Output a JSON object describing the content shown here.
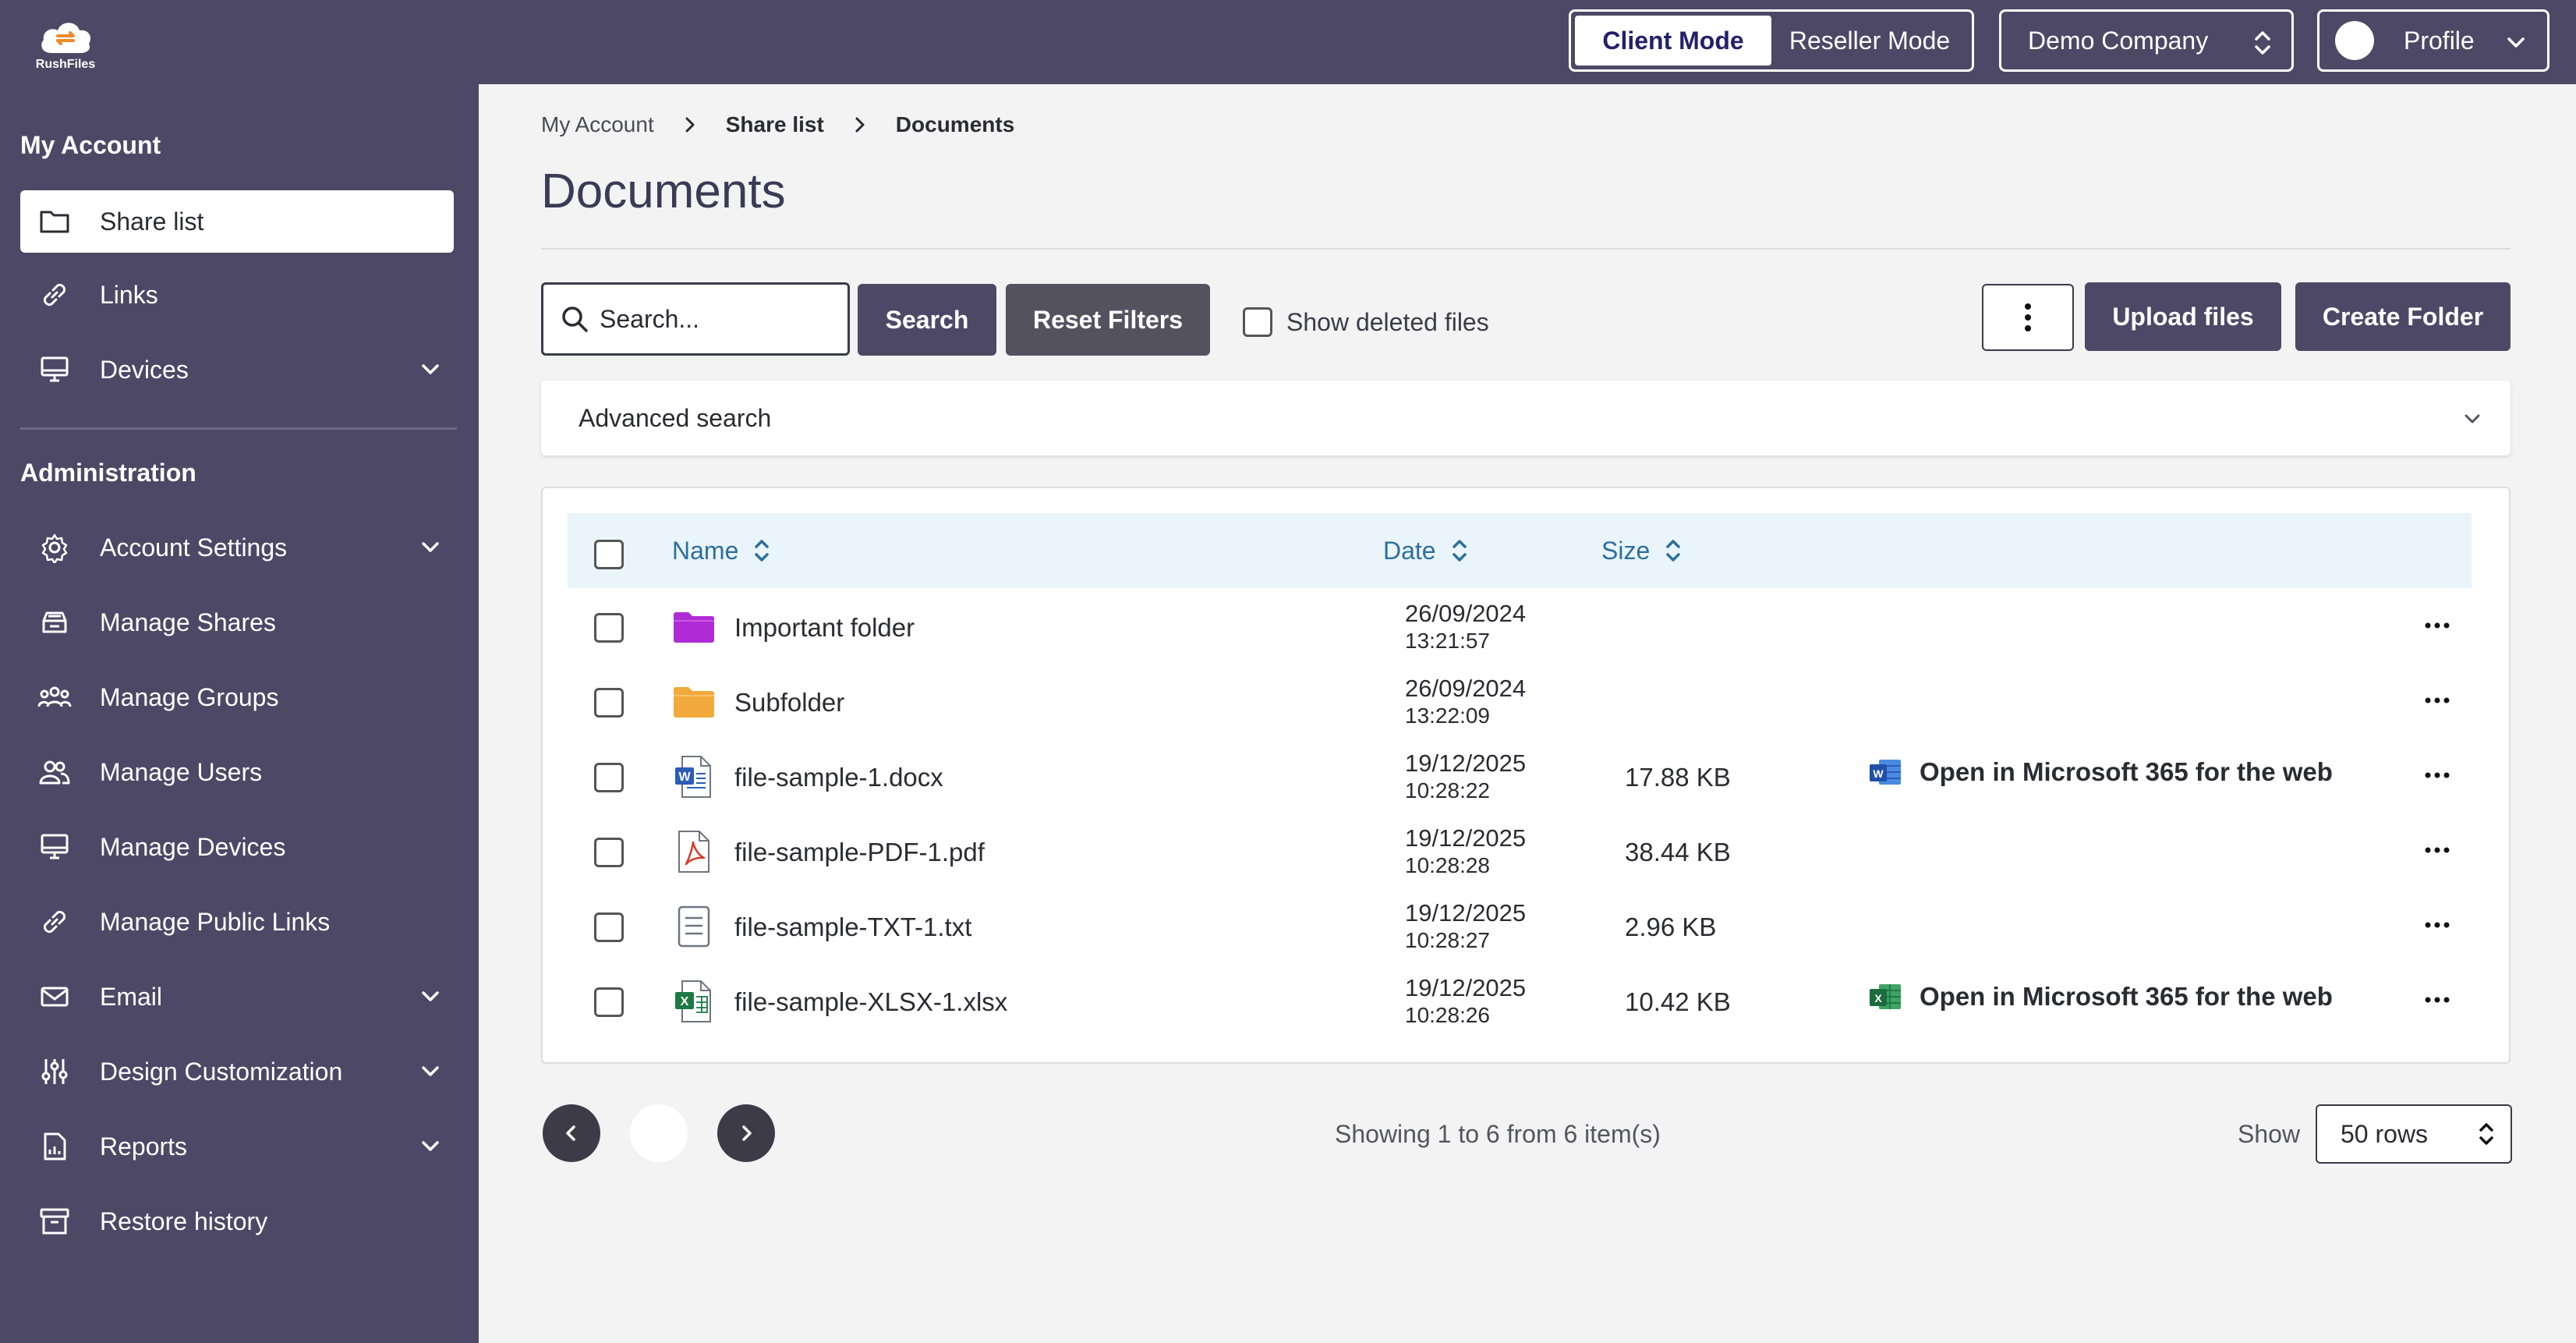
{
  "brand": {
    "name": "RushFiles"
  },
  "topbar": {
    "modes": [
      "Client Mode",
      "Reseller Mode"
    ],
    "active_mode": "Client Mode",
    "company": "Demo Company",
    "profile": "Profile"
  },
  "sidebar": {
    "my_account_heading": "My Account",
    "my_account_items": [
      {
        "label": "Share list",
        "icon": "folder-icon",
        "active": true
      },
      {
        "label": "Links",
        "icon": "link-icon"
      },
      {
        "label": "Devices",
        "icon": "monitor-icon",
        "expandable": true
      }
    ],
    "admin_heading": "Administration",
    "admin_items": [
      {
        "label": "Account Settings",
        "icon": "gear-icon",
        "expandable": true
      },
      {
        "label": "Manage Shares",
        "icon": "inbox-icon"
      },
      {
        "label": "Manage Groups",
        "icon": "group-icon"
      },
      {
        "label": "Manage Users",
        "icon": "users-icon"
      },
      {
        "label": "Manage Devices",
        "icon": "monitor-icon"
      },
      {
        "label": "Manage Public Links",
        "icon": "link-icon"
      },
      {
        "label": "Email",
        "icon": "mail-icon",
        "expandable": true
      },
      {
        "label": "Design Customization",
        "icon": "sliders-icon",
        "expandable": true
      },
      {
        "label": "Reports",
        "icon": "report-icon",
        "expandable": true
      },
      {
        "label": "Restore history",
        "icon": "archive-icon"
      }
    ]
  },
  "breadcrumb": [
    "My Account",
    "Share list",
    "Documents"
  ],
  "page": {
    "title": "Documents"
  },
  "toolbar": {
    "search_placeholder": "Search...",
    "search_label": "Search",
    "reset_label": "Reset Filters",
    "show_deleted_label": "Show deleted files",
    "upload_label": "Upload files",
    "create_folder_label": "Create Folder"
  },
  "advanced_search": {
    "label": "Advanced search"
  },
  "table": {
    "columns": {
      "name": "Name",
      "date": "Date",
      "size": "Size"
    },
    "rows": [
      {
        "name": "Important folder",
        "type": "folder",
        "color": "#b02ad6",
        "date": "26/09/2024",
        "time": "13:21:57",
        "size": "",
        "office": ""
      },
      {
        "name": "Subfolder",
        "type": "folder",
        "color": "#f0a93a",
        "date": "26/09/2024",
        "time": "13:22:09",
        "size": "",
        "office": ""
      },
      {
        "name": "file-sample-1.docx",
        "type": "word",
        "date": "19/12/2025",
        "time": "10:28:22",
        "size": "17.88 KB",
        "office": "Open in Microsoft 365 for the web"
      },
      {
        "name": "file-sample-PDF-1.pdf",
        "type": "pdf",
        "date": "19/12/2025",
        "time": "10:28:28",
        "size": "38.44 KB",
        "office": ""
      },
      {
        "name": "file-sample-TXT-1.txt",
        "type": "txt",
        "date": "19/12/2025",
        "time": "10:28:27",
        "size": "2.96 KB",
        "office": ""
      },
      {
        "name": "file-sample-XLSX-1.xlsx",
        "type": "excel",
        "date": "19/12/2025",
        "time": "10:28:26",
        "size": "10.42 KB",
        "office": "Open in Microsoft 365 for the web"
      }
    ]
  },
  "footer": {
    "showing": "Showing 1 to 6 from 6 item(s)",
    "show_label": "Show",
    "rows_value": "50 rows"
  },
  "colors": {
    "sidebar_bg": "#4d4866",
    "accent_dark": "#4d4866",
    "header_row_bg": "#eaf4fb",
    "header_text": "#2d6f9a"
  }
}
